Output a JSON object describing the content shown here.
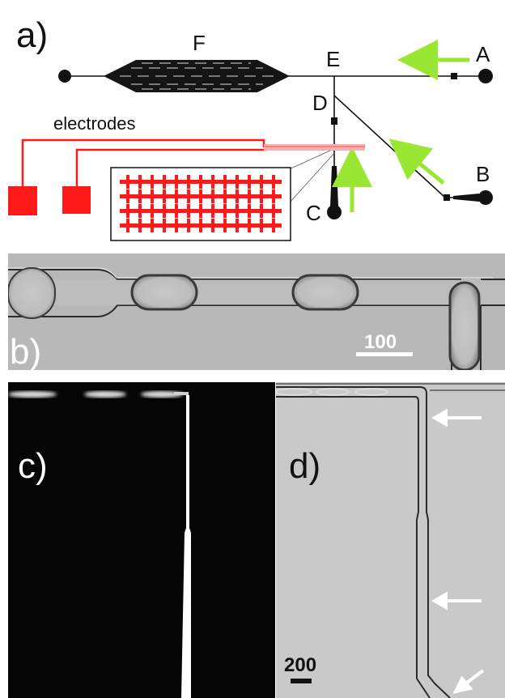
{
  "panel_a": {
    "panel_label": "a)",
    "nodes": {
      "F": "F",
      "E": "E",
      "A": "A",
      "D": "D",
      "B": "B",
      "C": "C"
    },
    "electrodes_label": "electrodes",
    "colors": {
      "electrode": "#ff1a1a",
      "flow_arrow": "#99e633",
      "channel": "#111111"
    }
  },
  "panel_b": {
    "panel_label": "b)",
    "scale_value": "100"
  },
  "panel_c": {
    "panel_label": "c)"
  },
  "panel_d": {
    "panel_label": "d)",
    "scale_value": "200"
  },
  "icons": {
    "flow_arrow": "arrow-icon",
    "inlet": "inlet-dot-icon",
    "valve": "valve-square-icon"
  }
}
